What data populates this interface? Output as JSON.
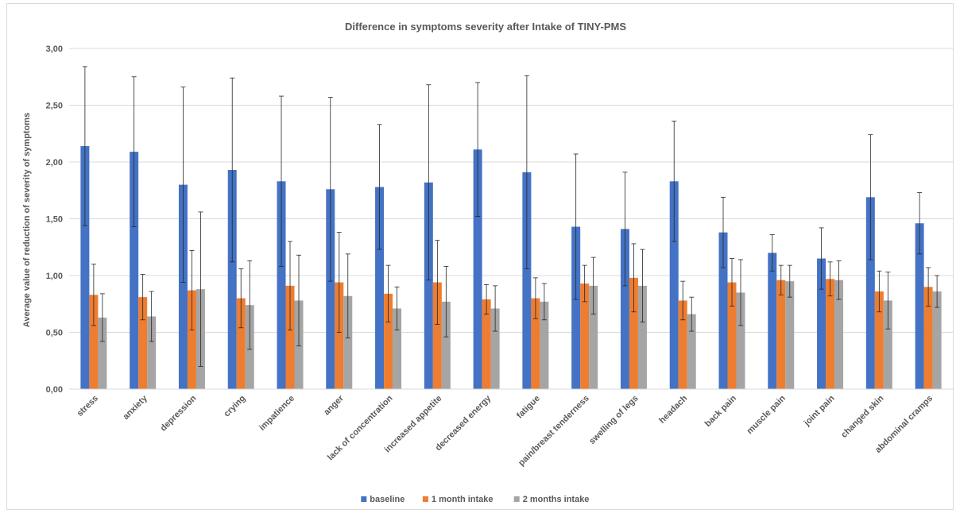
{
  "chart_data": {
    "type": "bar",
    "title": "Difference in symptoms severity after Intake of TINY-PMS",
    "ylabel": "Average value of reduction of severity of symptoms",
    "xlabel": "",
    "ylim": [
      0,
      3
    ],
    "yticks": [
      "0,00",
      "0,50",
      "1,00",
      "1,50",
      "2,00",
      "2,50",
      "3,00"
    ],
    "grid": "horizontal",
    "legend_position": "bottom",
    "error_bars": true,
    "categories": [
      "stress",
      "anxiety",
      "depression",
      "crying",
      "impatience",
      "anger",
      "lack of concentration",
      "increased appetite",
      "decreased energy",
      "fatigue",
      "pain/breast tenderness",
      "swelling of legs",
      "headach",
      "back pain",
      "muscle pain",
      "joint pain",
      "changed skin",
      "abdominal cramps"
    ],
    "series": [
      {
        "name": "baseline",
        "color": "#4472c4",
        "values": [
          2.14,
          2.09,
          1.8,
          1.93,
          1.83,
          1.76,
          1.78,
          1.82,
          2.11,
          1.91,
          1.43,
          1.41,
          1.83,
          1.38,
          1.2,
          1.15,
          1.69,
          1.46
        ],
        "errors": [
          0.7,
          0.66,
          0.86,
          0.81,
          0.75,
          0.81,
          0.55,
          0.86,
          0.59,
          0.85,
          0.64,
          0.5,
          0.53,
          0.31,
          0.16,
          0.27,
          0.55,
          0.27
        ]
      },
      {
        "name": "1 month intake",
        "color": "#ed7d31",
        "values": [
          0.83,
          0.81,
          0.87,
          0.8,
          0.91,
          0.94,
          0.84,
          0.94,
          0.79,
          0.8,
          0.93,
          0.98,
          0.78,
          0.94,
          0.96,
          0.97,
          0.86,
          0.9
        ],
        "errors": [
          0.27,
          0.2,
          0.35,
          0.26,
          0.39,
          0.44,
          0.25,
          0.37,
          0.13,
          0.18,
          0.16,
          0.3,
          0.17,
          0.21,
          0.13,
          0.15,
          0.18,
          0.17
        ]
      },
      {
        "name": "2 months intake",
        "color": "#a5a5a5",
        "values": [
          0.63,
          0.64,
          0.88,
          0.74,
          0.78,
          0.82,
          0.71,
          0.77,
          0.71,
          0.77,
          0.91,
          0.91,
          0.66,
          0.85,
          0.95,
          0.96,
          0.78,
          0.86
        ],
        "errors": [
          0.21,
          0.22,
          0.68,
          0.39,
          0.4,
          0.37,
          0.19,
          0.31,
          0.2,
          0.16,
          0.25,
          0.32,
          0.15,
          0.29,
          0.14,
          0.17,
          0.25,
          0.14
        ]
      }
    ]
  }
}
